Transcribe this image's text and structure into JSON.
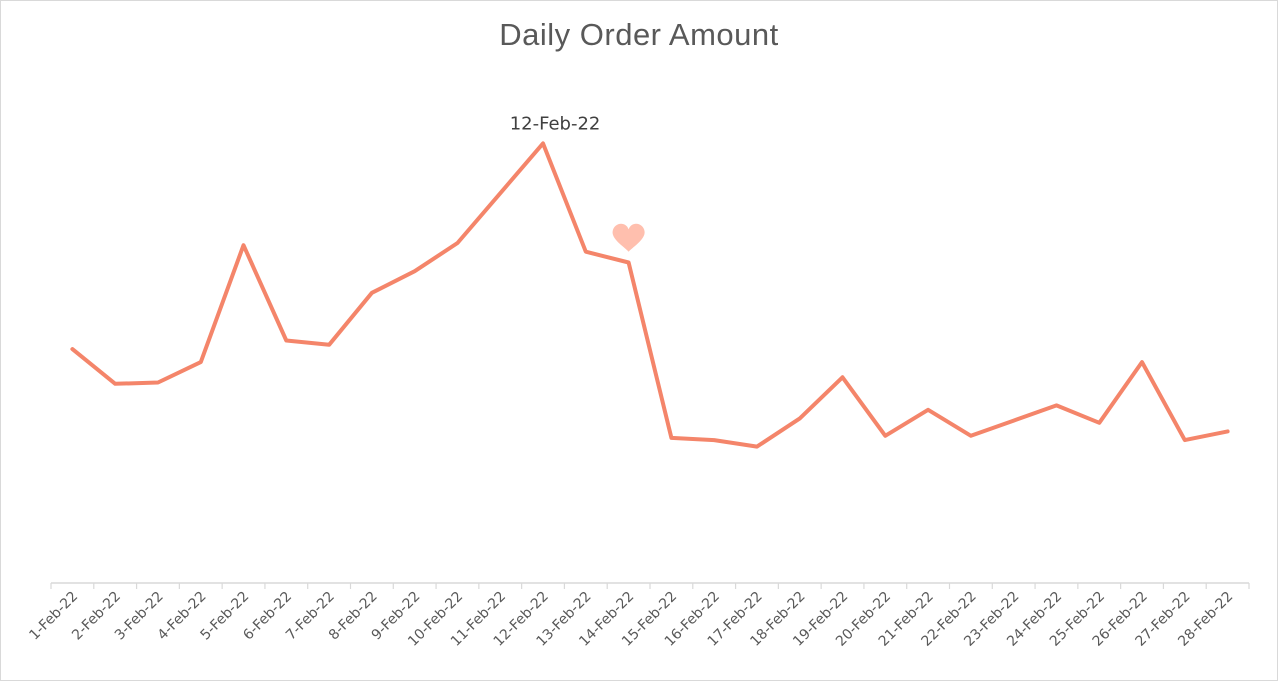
{
  "chart_data": {
    "type": "line",
    "title": "Daily Order Amount",
    "xlabel": "",
    "ylabel": "",
    "categories": [
      "1-Feb-22",
      "2-Feb-22",
      "3-Feb-22",
      "4-Feb-22",
      "5-Feb-22",
      "6-Feb-22",
      "7-Feb-22",
      "8-Feb-22",
      "9-Feb-22",
      "10-Feb-22",
      "11-Feb-22",
      "12-Feb-22",
      "13-Feb-22",
      "14-Feb-22",
      "15-Feb-22",
      "16-Feb-22",
      "17-Feb-22",
      "18-Feb-22",
      "19-Feb-22",
      "20-Feb-22",
      "21-Feb-22",
      "22-Feb-22",
      "23-Feb-22",
      "24-Feb-22",
      "25-Feb-22",
      "26-Feb-22",
      "27-Feb-22",
      "28-Feb-22"
    ],
    "series": [
      {
        "values": [
          54,
          46,
          46.3,
          51,
          78,
          56,
          55,
          67,
          72,
          78.5,
          90,
          101.5,
          76.5,
          74,
          33.5,
          33,
          31.5,
          38,
          47.5,
          34,
          40,
          34,
          37.5,
          41,
          37,
          51,
          33,
          35
        ],
        "color": "#f4856a"
      }
    ],
    "ylim": [
      0,
      130
    ],
    "grid": false,
    "legend": "none",
    "annotations": [
      {
        "text": "12-Feb-22",
        "category": "12-Feb-22"
      },
      {
        "icon": "heart-icon",
        "category": "14-Feb-22",
        "color": "#ffbfae"
      }
    ]
  }
}
